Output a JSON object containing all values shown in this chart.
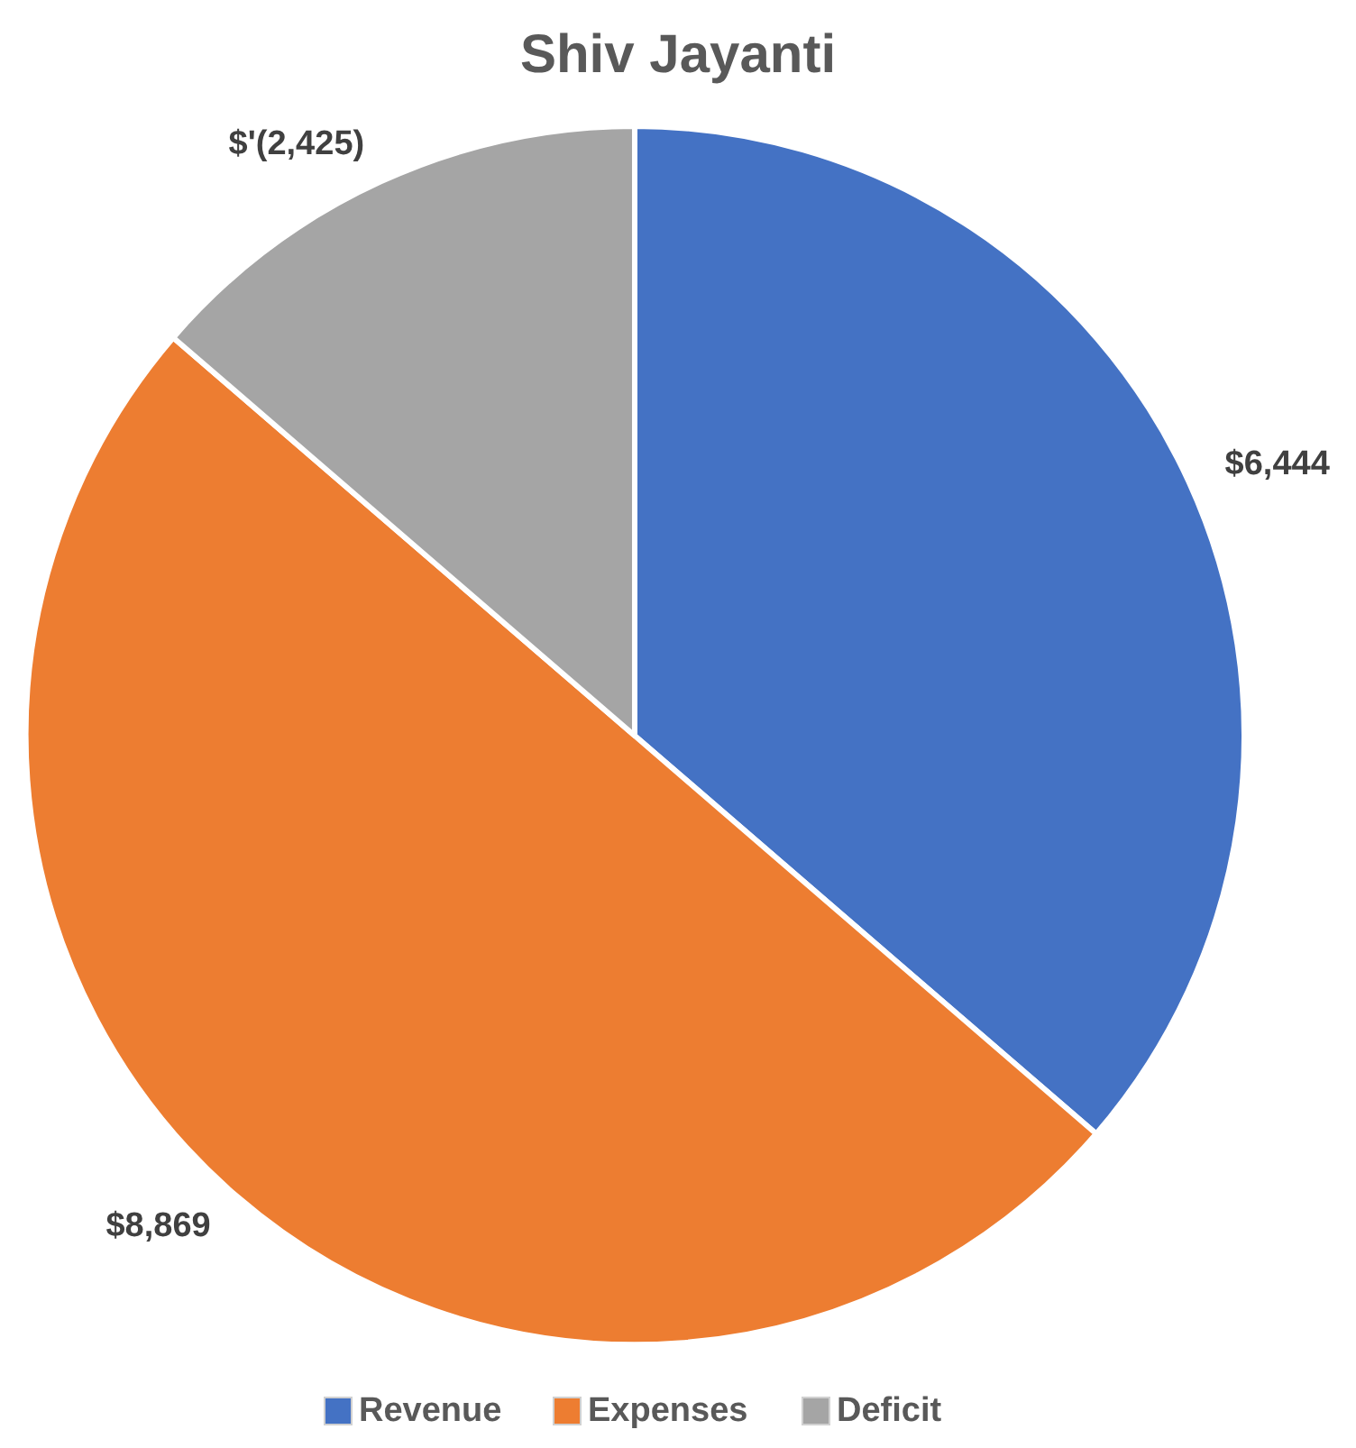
{
  "chart_data": {
    "type": "pie",
    "title": "Shiv Jayanti",
    "categories": [
      "Revenue",
      "Expenses",
      "Deficit"
    ],
    "values": [
      6444,
      8869,
      2425
    ],
    "colors": [
      "#4472c4",
      "#ed7d31",
      "#a5a5a5"
    ],
    "value_labels": [
      "$6,444",
      "$8,869",
      "$'(2,425)"
    ],
    "legend": "bottom"
  }
}
